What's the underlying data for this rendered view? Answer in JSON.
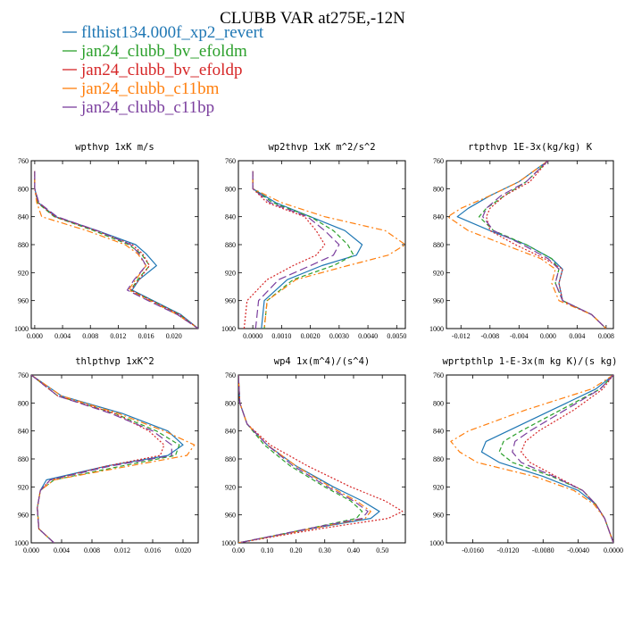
{
  "title": "CLUBB VAR at275E,-12N",
  "legend": [
    {
      "label": "flthist134.000f_xp2_revert",
      "color": "#1f77b4",
      "dash": "solid"
    },
    {
      "label": "jan24_clubb_bv_efoldm",
      "color": "#2ca02c",
      "dash": "dash"
    },
    {
      "label": "jan24_clubb_bv_efoldp",
      "color": "#d62728",
      "dash": "dot"
    },
    {
      "label": "jan24_clubb_c11bm",
      "color": "#ff7f0e",
      "dash": "dashdot"
    },
    {
      "label": "jan24_clubb_c11bp",
      "color": "#7b3f9e",
      "dash": "longdash"
    }
  ],
  "chart_data": [
    {
      "type": "line",
      "title": "wpthvp  1xK m/s",
      "xlim": [
        -0.0005,
        0.0235
      ],
      "ylim": [
        760,
        1000
      ],
      "y_inverted": true,
      "xticks": [
        "0.000",
        "0.004",
        "0.008",
        "0.012",
        "0.016",
        "0.020"
      ],
      "xtick_values": [
        0.0,
        0.004,
        0.008,
        0.012,
        0.016,
        0.02
      ],
      "yticks": [
        "760",
        "800",
        "840",
        "880",
        "920",
        "960",
        "1000"
      ],
      "y": [
        775,
        800,
        820,
        840,
        860,
        880,
        893,
        910,
        930,
        945,
        960,
        980,
        1000
      ],
      "series": [
        {
          "name": "flthist134.000f_xp2_revert",
          "values": [
            0.0,
            0.0,
            0.0005,
            0.003,
            0.009,
            0.0145,
            0.016,
            0.0175,
            0.015,
            0.014,
            0.017,
            0.021,
            0.0235
          ]
        },
        {
          "name": "jan24_clubb_bv_efoldm",
          "values": [
            0.0,
            0.0,
            0.0004,
            0.0028,
            0.0085,
            0.0135,
            0.0153,
            0.0165,
            0.0148,
            0.0138,
            0.0168,
            0.0208,
            0.0235
          ]
        },
        {
          "name": "jan24_clubb_bv_efoldp",
          "values": [
            0.0,
            0.0,
            0.0005,
            0.0029,
            0.0088,
            0.014,
            0.0155,
            0.0165,
            0.015,
            0.0138,
            0.0168,
            0.0208,
            0.0235
          ]
        },
        {
          "name": "jan24_clubb_c11bm",
          "values": [
            0.0,
            0.0,
            0.0003,
            0.001,
            0.0075,
            0.013,
            0.0148,
            0.016,
            0.0145,
            0.0135,
            0.0165,
            0.0205,
            0.0235
          ]
        },
        {
          "name": "jan24_clubb_c11bp",
          "values": [
            0.0,
            0.0,
            0.0006,
            0.0032,
            0.009,
            0.0138,
            0.015,
            0.016,
            0.0143,
            0.0133,
            0.0163,
            0.0205,
            0.0235
          ]
        }
      ]
    },
    {
      "type": "line",
      "title": "wp2thvp  1xK m^2/s^2",
      "xlim": [
        -0.0005,
        0.0053
      ],
      "ylim": [
        760,
        1000
      ],
      "y_inverted": true,
      "xticks": [
        "0.0000",
        "0.0010",
        "0.0020",
        "0.0030",
        "0.0040",
        "0.0050"
      ],
      "xtick_values": [
        0.0,
        0.001,
        0.002,
        0.003,
        0.004,
        0.005
      ],
      "yticks": [
        "760",
        "800",
        "840",
        "880",
        "920",
        "960",
        "1000"
      ],
      "y": [
        775,
        800,
        820,
        840,
        860,
        880,
        895,
        910,
        930,
        960,
        1000
      ],
      "series": [
        {
          "name": "flthist134.000f_xp2_revert",
          "values": [
            0.0,
            0.0,
            0.0008,
            0.002,
            0.0032,
            0.0038,
            0.0036,
            0.0024,
            0.0012,
            0.0004,
            0.0003
          ]
        },
        {
          "name": "jan24_clubb_bv_efoldm",
          "values": [
            0.0,
            0.0,
            0.0007,
            0.002,
            0.0028,
            0.0033,
            0.0035,
            0.0028,
            0.0014,
            0.0005,
            0.0004
          ]
        },
        {
          "name": "jan24_clubb_bv_efoldp",
          "values": [
            0.0,
            0.0,
            0.0005,
            0.0018,
            0.0022,
            0.0025,
            0.0022,
            0.0014,
            0.0005,
            -0.0002,
            -0.0003
          ]
        },
        {
          "name": "jan24_clubb_c11bm",
          "values": [
            0.0,
            0.0,
            0.001,
            0.0025,
            0.0046,
            0.0053,
            0.0047,
            0.0033,
            0.0015,
            0.0005,
            0.0004
          ]
        },
        {
          "name": "jan24_clubb_c11bp",
          "values": [
            0.0,
            0.0,
            0.0006,
            0.0019,
            0.0025,
            0.003,
            0.0028,
            0.002,
            0.0009,
            0.0002,
            0.0001
          ]
        }
      ]
    },
    {
      "type": "line",
      "title": "rtpthvp  1E-3x(kg/kg) K",
      "xlim": [
        -0.014,
        0.009
      ],
      "ylim": [
        760,
        1000
      ],
      "y_inverted": true,
      "xticks": [
        "-0.012",
        "-0.008",
        "-0.004",
        "0.000",
        "0.004",
        "0.008"
      ],
      "xtick_values": [
        -0.012,
        -0.008,
        -0.004,
        0.0,
        0.004,
        0.008
      ],
      "yticks": [
        "760",
        "800",
        "840",
        "880",
        "920",
        "960",
        "1000"
      ],
      "y": [
        760,
        790,
        810,
        828,
        840,
        860,
        880,
        900,
        915,
        935,
        960,
        980,
        1000
      ],
      "series": [
        {
          "name": "flthist134.000f_xp2_revert",
          "values": [
            0.0,
            -0.004,
            -0.008,
            -0.011,
            -0.0125,
            -0.008,
            -0.003,
            0.0005,
            0.002,
            0.0015,
            0.002,
            0.006,
            0.008
          ]
        },
        {
          "name": "jan24_clubb_bv_efoldm",
          "values": [
            0.0,
            -0.003,
            -0.006,
            -0.0085,
            -0.0095,
            -0.0075,
            -0.003,
            0.0005,
            0.0015,
            0.001,
            0.002,
            0.006,
            0.008
          ]
        },
        {
          "name": "jan24_clubb_bv_efoldp",
          "values": [
            0.0,
            -0.0025,
            -0.006,
            -0.008,
            -0.0085,
            -0.008,
            -0.0045,
            -0.0005,
            0.002,
            0.0015,
            0.002,
            0.006,
            0.008
          ]
        },
        {
          "name": "jan24_clubb_c11bm",
          "values": [
            0.0,
            -0.004,
            -0.008,
            -0.012,
            -0.0138,
            -0.011,
            -0.006,
            -0.001,
            0.001,
            0.0005,
            0.0015,
            0.006,
            0.008
          ]
        },
        {
          "name": "jan24_clubb_c11bp",
          "values": [
            0.0,
            -0.003,
            -0.0065,
            -0.0085,
            -0.009,
            -0.0075,
            -0.0035,
            0.0,
            0.0015,
            0.001,
            0.002,
            0.006,
            0.008
          ]
        }
      ]
    },
    {
      "type": "line",
      "title": "thlpthvp  1xK^2",
      "xlim": [
        0.0,
        0.022
      ],
      "ylim": [
        760,
        1000
      ],
      "y_inverted": true,
      "xticks": [
        "0.000",
        "0.004",
        "0.008",
        "0.012",
        "0.016",
        "0.020"
      ],
      "xtick_values": [
        0.0,
        0.004,
        0.008,
        0.012,
        0.016,
        0.02
      ],
      "yticks": [
        "760",
        "800",
        "840",
        "880",
        "920",
        "960",
        "1000"
      ],
      "y": [
        760,
        790,
        815,
        840,
        860,
        875,
        890,
        910,
        925,
        950,
        980,
        1000
      ],
      "series": [
        {
          "name": "flthist134.000f_xp2_revert",
          "values": [
            0.0,
            0.004,
            0.012,
            0.018,
            0.02,
            0.018,
            0.01,
            0.002,
            0.0012,
            0.0008,
            0.001,
            0.003
          ]
        },
        {
          "name": "jan24_clubb_bv_efoldm",
          "values": [
            0.0,
            0.0035,
            0.011,
            0.0165,
            0.0195,
            0.019,
            0.012,
            0.003,
            0.0012,
            0.0008,
            0.001,
            0.003
          ]
        },
        {
          "name": "jan24_clubb_bv_efoldp",
          "values": [
            0.0,
            0.0035,
            0.011,
            0.0155,
            0.0175,
            0.017,
            0.01,
            0.0025,
            0.0012,
            0.0008,
            0.001,
            0.003
          ]
        },
        {
          "name": "jan24_clubb_c11bm",
          "values": [
            0.0,
            0.004,
            0.0115,
            0.0175,
            0.0215,
            0.0205,
            0.013,
            0.003,
            0.0012,
            0.0008,
            0.001,
            0.003
          ]
        },
        {
          "name": "jan24_clubb_c11bp",
          "values": [
            0.0,
            0.0035,
            0.0105,
            0.016,
            0.0185,
            0.0185,
            0.0105,
            0.0025,
            0.0012,
            0.0008,
            0.001,
            0.003
          ]
        }
      ]
    },
    {
      "type": "line",
      "title": "wp4  1x(m^4)/(s^4)",
      "xlim": [
        0.0,
        0.58
      ],
      "ylim": [
        760,
        1000
      ],
      "y_inverted": true,
      "xticks": [
        "0.00",
        "0.10",
        "0.20",
        "0.30",
        "0.40",
        "0.50"
      ],
      "xtick_values": [
        0.0,
        0.1,
        0.2,
        0.3,
        0.4,
        0.5
      ],
      "yticks": [
        "760",
        "800",
        "840",
        "880",
        "920",
        "960",
        "1000"
      ],
      "y": [
        760,
        800,
        830,
        860,
        890,
        920,
        940,
        955,
        965,
        980,
        1000
      ],
      "series": [
        {
          "name": "flthist134.000f_xp2_revert",
          "values": [
            0.0,
            0.005,
            0.03,
            0.1,
            0.2,
            0.33,
            0.43,
            0.49,
            0.46,
            0.25,
            0.0
          ]
        },
        {
          "name": "jan24_clubb_bv_efoldm",
          "values": [
            0.0,
            0.005,
            0.03,
            0.09,
            0.18,
            0.3,
            0.39,
            0.43,
            0.41,
            0.24,
            0.0
          ]
        },
        {
          "name": "jan24_clubb_bv_efoldp",
          "values": [
            0.0,
            0.005,
            0.03,
            0.11,
            0.24,
            0.39,
            0.51,
            0.57,
            0.52,
            0.28,
            0.0
          ]
        },
        {
          "name": "jan24_clubb_c11bm",
          "values": [
            0.0,
            0.005,
            0.03,
            0.1,
            0.2,
            0.32,
            0.41,
            0.46,
            0.44,
            0.25,
            0.0
          ]
        },
        {
          "name": "jan24_clubb_c11bp",
          "values": [
            0.0,
            0.005,
            0.03,
            0.1,
            0.19,
            0.31,
            0.4,
            0.45,
            0.43,
            0.24,
            0.0
          ]
        }
      ]
    },
    {
      "type": "line",
      "title": "wprtpthlp  1-E-3x(m kg K)/(s kg)",
      "xlim": [
        -0.019,
        0.0
      ],
      "ylim": [
        760,
        1000
      ],
      "y_inverted": true,
      "xticks": [
        "-0.0160",
        "-0.0120",
        "-0.0080",
        "-0.0040",
        "0.0000"
      ],
      "xtick_values": [
        -0.016,
        -0.012,
        -0.008,
        -0.004,
        0.0
      ],
      "yticks": [
        "760",
        "800",
        "840",
        "880",
        "920",
        "960",
        "1000"
      ],
      "y": [
        760,
        780,
        810,
        840,
        855,
        870,
        885,
        905,
        925,
        945,
        965,
        1000
      ],
      "series": [
        {
          "name": "flthist134.000f_xp2_revert",
          "values": [
            0.0,
            -0.002,
            -0.007,
            -0.012,
            -0.0145,
            -0.015,
            -0.013,
            -0.008,
            -0.004,
            -0.002,
            -0.001,
            0.0
          ]
        },
        {
          "name": "jan24_clubb_bv_efoldm",
          "values": [
            0.0,
            -0.0015,
            -0.006,
            -0.0105,
            -0.0125,
            -0.013,
            -0.0115,
            -0.007,
            -0.0035,
            -0.002,
            -0.001,
            0.0
          ]
        },
        {
          "name": "jan24_clubb_bv_efoldp",
          "values": [
            0.0,
            -0.0012,
            -0.0045,
            -0.0085,
            -0.01,
            -0.0105,
            -0.0095,
            -0.0065,
            -0.0035,
            -0.002,
            -0.001,
            0.0
          ]
        },
        {
          "name": "jan24_clubb_c11bm",
          "values": [
            0.0,
            -0.0025,
            -0.01,
            -0.0165,
            -0.0185,
            -0.0175,
            -0.0155,
            -0.009,
            -0.0045,
            -0.0022,
            -0.001,
            0.0
          ]
        },
        {
          "name": "jan24_clubb_c11bp",
          "values": [
            0.0,
            -0.0015,
            -0.0055,
            -0.0095,
            -0.0112,
            -0.0115,
            -0.0105,
            -0.0068,
            -0.0035,
            -0.002,
            -0.001,
            0.0
          ]
        }
      ]
    }
  ]
}
